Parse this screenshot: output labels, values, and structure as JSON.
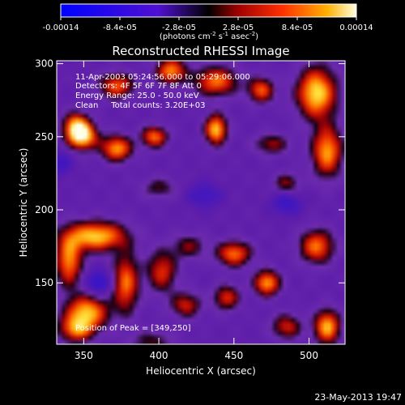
{
  "chart_data": {
    "type": "heatmap",
    "title": "Reconstructed RHESSI Image",
    "xlabel": "Heliocentric X (arcsec)",
    "ylabel": "Heliocentric Y (arcsec)",
    "xlim": [
      332,
      524
    ],
    "ylim": [
      108,
      302
    ],
    "x_ticks": [
      "350",
      "400",
      "450",
      "500"
    ],
    "x_tick_values": [
      350,
      400,
      450,
      500
    ],
    "y_ticks": [
      "150",
      "200",
      "250",
      "300"
    ],
    "y_tick_values": [
      150,
      200,
      250,
      300
    ],
    "colorbar": {
      "ticks": [
        "-0.00014",
        "-8.4e-05",
        "-2.8e-05",
        "2.8e-05",
        "8.4e-05",
        "0.00014"
      ],
      "tick_values": [
        -0.00014,
        -8.4e-05,
        -2.8e-05,
        2.8e-05,
        8.4e-05,
        0.00014
      ],
      "range": [
        -0.00014,
        0.00014
      ],
      "label_main": "(photons cm",
      "label_exp1": "-2",
      "label_mid": " s",
      "label_exp2": "-1",
      "label_tail": " asec",
      "label_exp3": "-2",
      "label_end": ")"
    },
    "annotations": [
      "11-Apr-2003 05:24:56.000 to 05:29:06.000",
      "Detectors: 4F 5F 6F 7F 8F  Att 0",
      "Energy Range: 25.0 - 50.0 keV",
      "Clean     Total counts: 3.20E+03"
    ],
    "peak_text": "Position of Peak = [349,250]",
    "sources": [
      {
        "x": 349,
        "y": 250,
        "amp": 1.0,
        "sx": 7,
        "sy": 6
      },
      {
        "x": 345,
        "y": 258,
        "amp": 0.8,
        "sx": 6,
        "sy": 6
      },
      {
        "x": 372,
        "y": 242,
        "amp": 0.85,
        "sx": 7,
        "sy": 6
      },
      {
        "x": 397,
        "y": 250,
        "amp": 0.75,
        "sx": 6,
        "sy": 5
      },
      {
        "x": 372,
        "y": 285,
        "amp": 0.7,
        "sx": 8,
        "sy": 6
      },
      {
        "x": 408,
        "y": 295,
        "amp": 0.8,
        "sx": 7,
        "sy": 6
      },
      {
        "x": 438,
        "y": 288,
        "amp": 0.75,
        "sx": 10,
        "sy": 7
      },
      {
        "x": 438,
        "y": 255,
        "amp": 0.95,
        "sx": 5,
        "sy": 7
      },
      {
        "x": 468,
        "y": 282,
        "amp": 0.7,
        "sx": 6,
        "sy": 6
      },
      {
        "x": 505,
        "y": 280,
        "amp": 1.0,
        "sx": 9,
        "sy": 12
      },
      {
        "x": 512,
        "y": 240,
        "amp": 0.85,
        "sx": 7,
        "sy": 12
      },
      {
        "x": 475,
        "y": 245,
        "amp": 0.45,
        "sx": 8,
        "sy": 5
      },
      {
        "x": 485,
        "y": 218,
        "amp": 0.45,
        "sx": 6,
        "sy": 5
      },
      {
        "x": 358,
        "y": 182,
        "amp": 0.95,
        "sx": 14,
        "sy": 7
      },
      {
        "x": 340,
        "y": 165,
        "amp": 0.8,
        "sx": 6,
        "sy": 12
      },
      {
        "x": 378,
        "y": 150,
        "amp": 0.75,
        "sx": 6,
        "sy": 14
      },
      {
        "x": 352,
        "y": 130,
        "amp": 0.9,
        "sx": 10,
        "sy": 8
      },
      {
        "x": 345,
        "y": 118,
        "amp": 0.7,
        "sx": 8,
        "sy": 6
      },
      {
        "x": 402,
        "y": 158,
        "amp": 0.6,
        "sx": 7,
        "sy": 10
      },
      {
        "x": 420,
        "y": 175,
        "amp": 0.4,
        "sx": 8,
        "sy": 6
      },
      {
        "x": 418,
        "y": 135,
        "amp": 0.55,
        "sx": 7,
        "sy": 6
      },
      {
        "x": 450,
        "y": 170,
        "amp": 0.75,
        "sx": 8,
        "sy": 6
      },
      {
        "x": 445,
        "y": 140,
        "amp": 0.6,
        "sx": 6,
        "sy": 6
      },
      {
        "x": 472,
        "y": 150,
        "amp": 0.85,
        "sx": 6,
        "sy": 6
      },
      {
        "x": 505,
        "y": 175,
        "amp": 0.75,
        "sx": 8,
        "sy": 8
      },
      {
        "x": 485,
        "y": 120,
        "amp": 0.55,
        "sx": 7,
        "sy": 6
      },
      {
        "x": 512,
        "y": 120,
        "amp": 0.9,
        "sx": 6,
        "sy": 8
      },
      {
        "x": 400,
        "y": 215,
        "amp": 0.35,
        "sx": 8,
        "sy": 5
      },
      {
        "x": 395,
        "y": 110,
        "amp": 0.35,
        "sx": 10,
        "sy": 5
      },
      {
        "x": 360,
        "y": 150,
        "amp": -0.45,
        "sx": 6,
        "sy": 6
      },
      {
        "x": 485,
        "y": 205,
        "amp": -0.35,
        "sx": 7,
        "sy": 6
      },
      {
        "x": 335,
        "y": 232,
        "amp": -0.3,
        "sx": 5,
        "sy": 6
      },
      {
        "x": 430,
        "y": 210,
        "amp": -0.3,
        "sx": 8,
        "sy": 6
      }
    ]
  },
  "footer": {
    "date_stamp": "23-May-2013 19:47"
  }
}
